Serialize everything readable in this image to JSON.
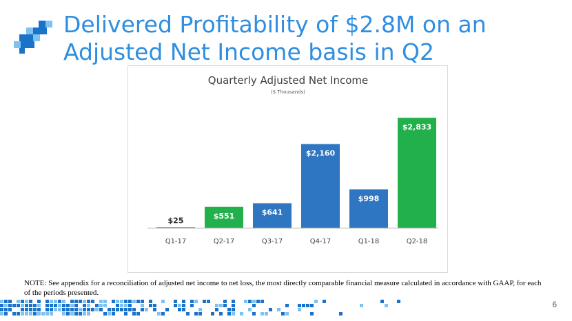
{
  "slide": {
    "title": "Delivered Profitability of $2.8M on an Adjusted Net Income basis in Q2",
    "note": "NOTE: See appendix for a reconciliation of adjusted net income to net loss, the most directly comparable financial measure calculated in accordance with GAAP, for each of the periods presented.",
    "page_number": "6"
  },
  "colors": {
    "title": "#2f8ee0",
    "blue_bar": "#2e75c2",
    "green_bar": "#21b04b",
    "logo_dark": "#1a72c9",
    "logo_light": "#7fc2f2"
  },
  "chart_data": {
    "type": "bar",
    "title": "Quarterly Adjusted Net Income",
    "subtitle": "($ Thousands)",
    "categories": [
      "Q1-17",
      "Q2-17",
      "Q3-17",
      "Q4-17",
      "Q1-18",
      "Q2-18"
    ],
    "values": [
      25,
      551,
      641,
      2160,
      998,
      2833
    ],
    "data_labels": [
      "$25",
      "$551",
      "$641",
      "$2,160",
      "$998",
      "$2,833"
    ],
    "bar_colors": [
      "#2e75c2",
      "#21b04b",
      "#2e75c2",
      "#2e75c2",
      "#2e75c2",
      "#21b04b"
    ],
    "ylim": [
      0,
      3000
    ],
    "grid": false,
    "legend": "none"
  }
}
